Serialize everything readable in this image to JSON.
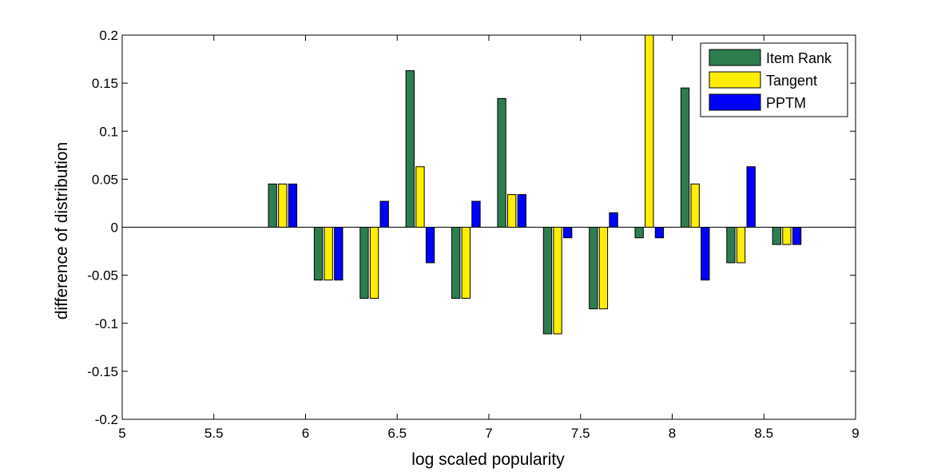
{
  "chart_data": {
    "type": "bar",
    "xlabel": "log scaled popularity",
    "ylabel": "difference of distribution",
    "xlim": [
      5,
      9
    ],
    "ylim": [
      -0.2,
      0.2
    ],
    "xticks": [
      "5",
      "5.5",
      "6",
      "6.5",
      "7",
      "7.5",
      "8",
      "8.5",
      "9"
    ],
    "yticks": [
      "-0.2",
      "-0.15",
      "-0.1",
      "-0.05",
      "0",
      "0.05",
      "0.1",
      "0.15",
      "0.2"
    ],
    "x": [
      5.875,
      6.125,
      6.375,
      6.625,
      6.875,
      7.125,
      7.375,
      7.625,
      7.875,
      8.125,
      8.375,
      8.625
    ],
    "series": [
      {
        "name": "Item Rank",
        "color": "#2e7d4f",
        "values": [
          0.045,
          -0.055,
          -0.074,
          0.163,
          -0.074,
          0.134,
          -0.111,
          -0.085,
          -0.011,
          0.145,
          -0.037,
          -0.018
        ]
      },
      {
        "name": "Tangent",
        "color": "#ffee00",
        "values": [
          0.045,
          -0.055,
          -0.074,
          0.063,
          -0.074,
          0.034,
          -0.111,
          -0.085,
          0.2,
          0.045,
          -0.037,
          -0.018
        ]
      },
      {
        "name": "PPTM",
        "color": "#0000ff",
        "values": [
          0.045,
          -0.055,
          0.027,
          -0.037,
          0.027,
          0.034,
          -0.011,
          0.015,
          -0.011,
          -0.055,
          0.063,
          -0.018
        ]
      }
    ],
    "legend_position": "top-right",
    "grid": false
  }
}
